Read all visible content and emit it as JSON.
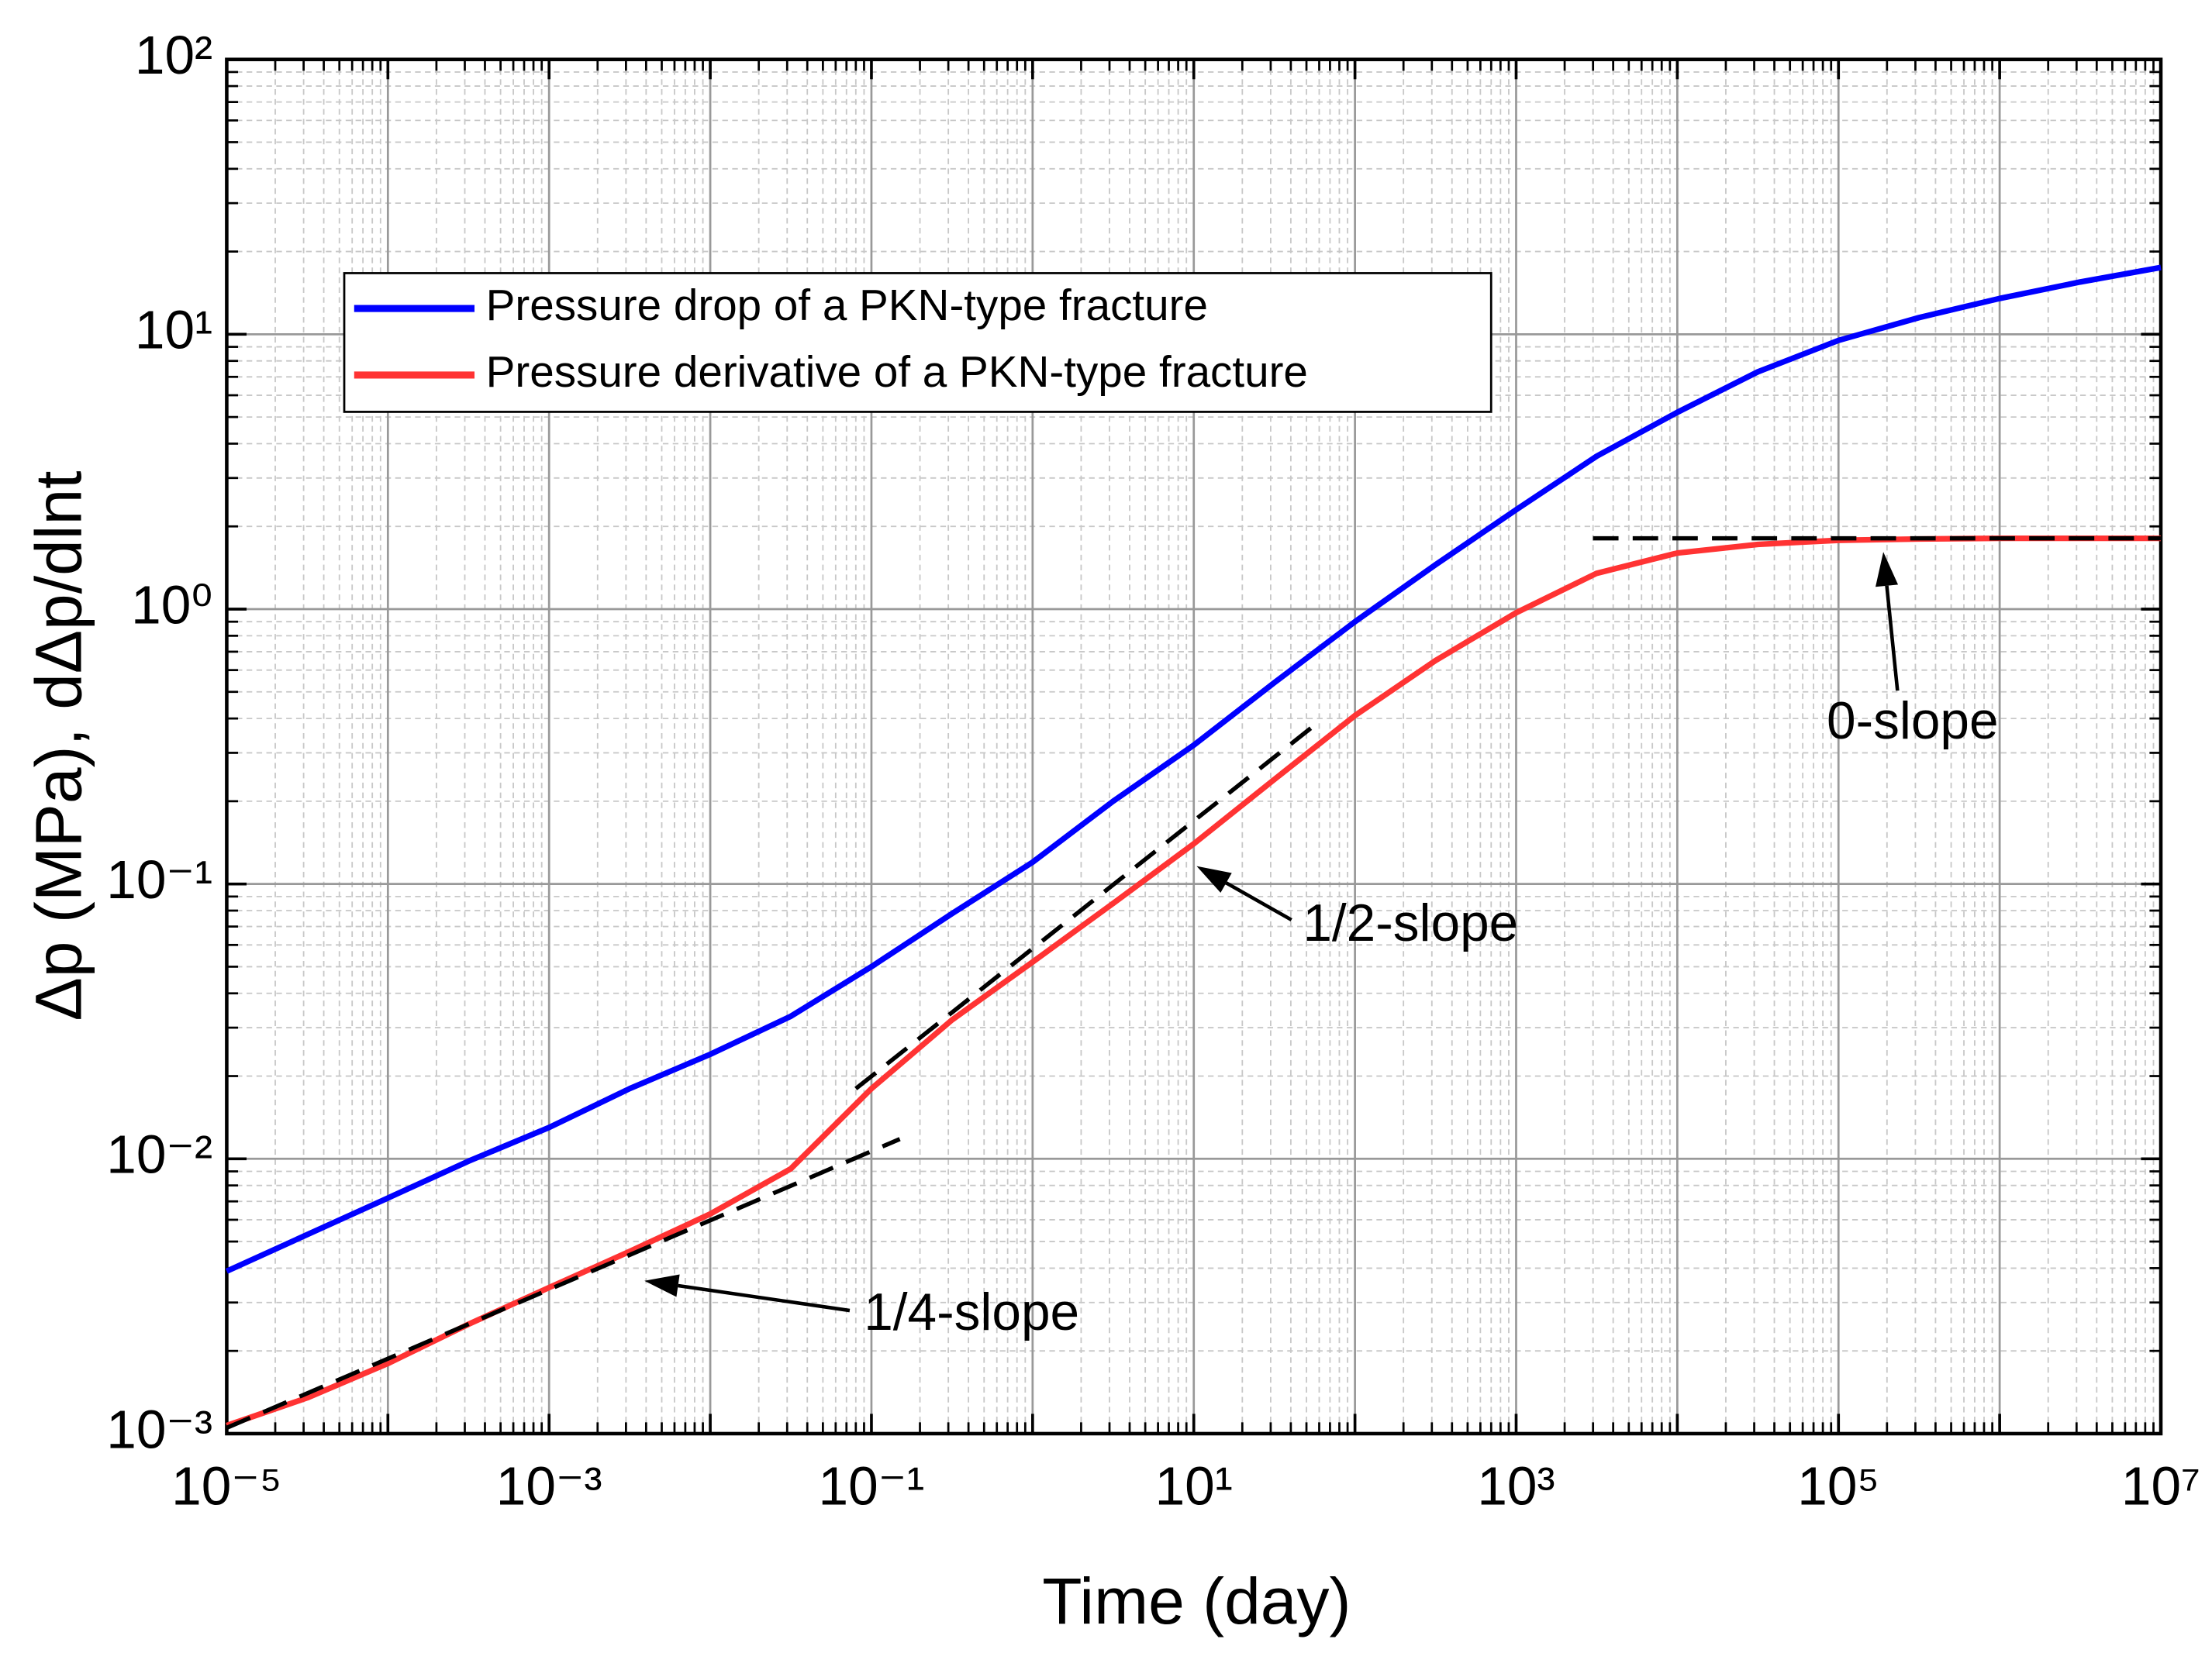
{
  "chart_data": {
    "type": "line",
    "xlabel": "Time (day)",
    "ylabel": "Δp (MPa), dΔp/dlnt",
    "xlog": true,
    "ylog": true,
    "grid": true,
    "minor_grid": true,
    "legend": "upper left",
    "xlim": [
      1e-05,
      10000000
    ],
    "ylim": [
      0.001,
      100
    ],
    "xticks": [
      {
        "value": 1e-05,
        "label": "10⁻⁵"
      },
      {
        "value": 0.001,
        "label": "10⁻³"
      },
      {
        "value": 0.1,
        "label": "10⁻¹"
      },
      {
        "value": 10,
        "label": "10¹"
      },
      {
        "value": 1000,
        "label": "10³"
      },
      {
        "value": 100000,
        "label": "10⁵"
      },
      {
        "value": 10000000,
        "label": "10⁷"
      }
    ],
    "xgrid_unlabeled": [
      0.0001,
      0.01,
      1,
      100,
      10000,
      1000000
    ],
    "yticks": [
      {
        "value": 0.001,
        "label": "10⁻³"
      },
      {
        "value": 0.01,
        "label": "10⁻²"
      },
      {
        "value": 0.1,
        "label": "10⁻¹"
      },
      {
        "value": 1,
        "label": "10⁰"
      },
      {
        "value": 10,
        "label": "10¹"
      },
      {
        "value": 100,
        "label": "10²"
      }
    ],
    "x": [
      1e-05,
      3.16e-05,
      0.0001,
      0.000316,
      0.001,
      0.00316,
      0.01,
      0.0316,
      0.1,
      0.316,
      1,
      3.16,
      10,
      31.6,
      100,
      316,
      1000,
      3160,
      10000,
      31600,
      100000,
      316000,
      1000000,
      3160000,
      10000000
    ],
    "series": [
      {
        "name": "Pressure drop of a PKN-type fracture",
        "color": "#0000ff",
        "values": [
          0.0039,
          0.0053,
          0.0072,
          0.0098,
          0.013,
          0.018,
          0.024,
          0.033,
          0.05,
          0.078,
          0.12,
          0.2,
          0.32,
          0.54,
          0.9,
          1.45,
          2.3,
          3.6,
          5.2,
          7.3,
          9.5,
          11.5,
          13.5,
          15.5,
          17.5
        ]
      },
      {
        "name": "Pressure derivative of a PKN-type fracture",
        "color": "#ff3333",
        "values": [
          0.00107,
          0.00135,
          0.0018,
          0.0025,
          0.0034,
          0.0046,
          0.0063,
          0.0092,
          0.018,
          0.032,
          0.052,
          0.085,
          0.14,
          0.24,
          0.41,
          0.65,
          0.97,
          1.35,
          1.6,
          1.72,
          1.78,
          1.8,
          1.81,
          1.81,
          1.81
        ]
      }
    ],
    "reference_lines": [
      {
        "color": "#000000",
        "x": [
          1e-05,
          0.15
        ],
        "values": [
          0.00105,
          0.0118
        ]
      },
      {
        "color": "#000000",
        "x": [
          0.08,
          60
        ],
        "values": [
          0.018,
          0.39
        ]
      },
      {
        "color": "#000000",
        "x": [
          3000,
          10000000
        ],
        "values": [
          1.81,
          1.81
        ]
      }
    ],
    "annotations": [
      "1/4-slope",
      "1/2-slope",
      "0-slope"
    ]
  }
}
